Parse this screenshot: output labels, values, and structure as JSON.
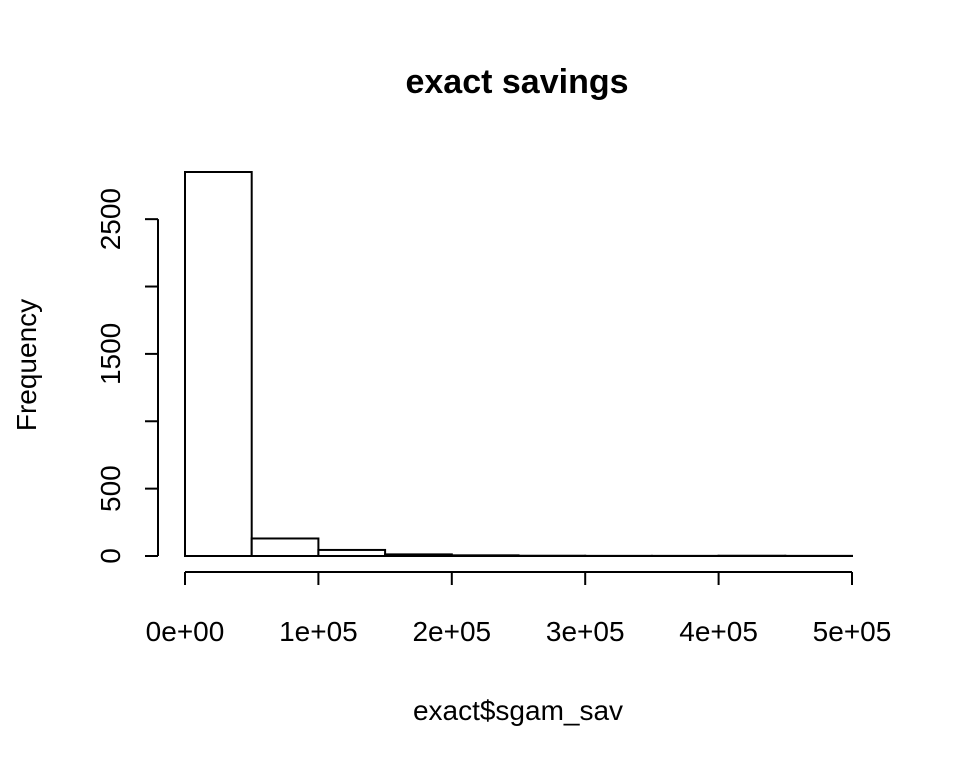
{
  "chart_data": {
    "type": "bar",
    "title": "exact savings",
    "xlabel": "exact$sgam_sav",
    "ylabel": "Frequency",
    "xlim": [
      0,
      500000
    ],
    "ylim": [
      0,
      2850
    ],
    "x_ticks": [
      0,
      100000,
      200000,
      300000,
      400000,
      500000
    ],
    "x_tick_labels": [
      "0e+00",
      "1e+05",
      "2e+05",
      "3e+05",
      "4e+05",
      "5e+05"
    ],
    "y_ticks": [
      0,
      500,
      1000,
      1500,
      2000,
      2500
    ],
    "y_tick_labels": [
      "0",
      "500",
      "",
      "1500",
      "",
      "2500"
    ],
    "bins": [
      {
        "start": 0,
        "end": 50000,
        "value": 2850
      },
      {
        "start": 50000,
        "end": 100000,
        "value": 130
      },
      {
        "start": 100000,
        "end": 150000,
        "value": 45
      },
      {
        "start": 150000,
        "end": 200000,
        "value": 12
      },
      {
        "start": 200000,
        "end": 250000,
        "value": 5
      },
      {
        "start": 250000,
        "end": 300000,
        "value": 2
      },
      {
        "start": 300000,
        "end": 350000,
        "value": 1
      },
      {
        "start": 350000,
        "end": 400000,
        "value": 1
      },
      {
        "start": 400000,
        "end": 450000,
        "value": 2
      },
      {
        "start": 450000,
        "end": 500000,
        "value": 1
      }
    ],
    "colors": {
      "fill": "#ffffff",
      "stroke": "#000000"
    }
  }
}
